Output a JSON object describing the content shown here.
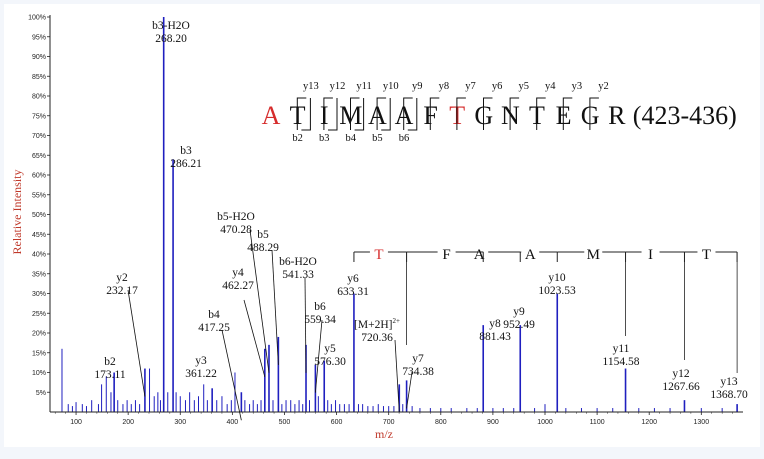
{
  "chart_data": {
    "type": "bar",
    "title": "",
    "xlabel": "m/z",
    "ylabel": "Relative Intensity",
    "xlim": [
      50,
      1380
    ],
    "ylim": [
      0,
      100
    ],
    "colors": {
      "axis_label": "#c0392b",
      "peak": "#1f1fbf",
      "highlight": "#d62c2c",
      "text": "#111111"
    },
    "x_ticks": [
      "100",
      "200",
      "300",
      "400",
      "500",
      "600",
      "700",
      "800",
      "900",
      "1000",
      "1100",
      "1200",
      "1300"
    ],
    "y_ticks": [
      "5%",
      "10%",
      "15%",
      "20%",
      "25%",
      "30%",
      "35%",
      "40%",
      "45%",
      "50%",
      "55%",
      "60%",
      "65%",
      "70%",
      "75%",
      "80%",
      "85%",
      "90%",
      "95%",
      "100%"
    ],
    "labeled_peaks": [
      {
        "label": "b2",
        "mz": "173.11",
        "x": 173.11,
        "y": 10
      },
      {
        "label": "y2",
        "mz": "232.17",
        "x": 232.17,
        "y": 11
      },
      {
        "label": "b3-H2O",
        "mz": "268.20",
        "x": 268.2,
        "y": 100
      },
      {
        "label": "b3",
        "mz": "286.21",
        "x": 286.21,
        "y": 64
      },
      {
        "label": "y3",
        "mz": "361.22",
        "x": 361.22,
        "y": 6
      },
      {
        "label": "b4",
        "mz": "417.25",
        "x": 417.25,
        "y": 5
      },
      {
        "label": "y4",
        "mz": "462.27",
        "x": 462.27,
        "y": 16
      },
      {
        "label": "b5-H2O",
        "mz": "470.28",
        "x": 470.28,
        "y": 17
      },
      {
        "label": "b5",
        "mz": "488.29",
        "x": 488.29,
        "y": 19
      },
      {
        "label": "b6-H2O",
        "mz": "541.33",
        "x": 541.33,
        "y": 17
      },
      {
        "label": "b6",
        "mz": "559.34",
        "x": 559.34,
        "y": 12
      },
      {
        "label": "y5",
        "mz": "576.30",
        "x": 576.3,
        "y": 13
      },
      {
        "label": "y6",
        "mz": "633.31",
        "x": 633.31,
        "y": 30
      },
      {
        "label": "[M+2H]",
        "sup": "2+",
        "mz": "720.36",
        "x": 720.36,
        "y": 7
      },
      {
        "label": "y7",
        "mz": "734.38",
        "x": 734.38,
        "y": 8
      },
      {
        "label": "y8",
        "mz": "881.43",
        "x": 881.43,
        "y": 22
      },
      {
        "label": "y9",
        "mz": "952.49",
        "x": 952.49,
        "y": 22
      },
      {
        "label": "y10",
        "mz": "1023.53",
        "x": 1023.53,
        "y": 30
      },
      {
        "label": "y11",
        "mz": "1154.58",
        "x": 1154.58,
        "y": 11
      },
      {
        "label": "y12",
        "mz": "1267.66",
        "x": 1267.66,
        "y": 3
      },
      {
        "label": "y13",
        "mz": "1368.70",
        "x": 1368.7,
        "y": 2
      }
    ],
    "other_peaks": [
      {
        "x": 73,
        "y": 16
      },
      {
        "x": 85,
        "y": 2
      },
      {
        "x": 93,
        "y": 1.5
      },
      {
        "x": 100,
        "y": 2.5
      },
      {
        "x": 112,
        "y": 2
      },
      {
        "x": 120,
        "y": 1.5
      },
      {
        "x": 130,
        "y": 3
      },
      {
        "x": 143,
        "y": 2
      },
      {
        "x": 149,
        "y": 7
      },
      {
        "x": 158,
        "y": 9
      },
      {
        "x": 167,
        "y": 5
      },
      {
        "x": 180,
        "y": 3
      },
      {
        "x": 190,
        "y": 2
      },
      {
        "x": 198,
        "y": 3
      },
      {
        "x": 206,
        "y": 2
      },
      {
        "x": 214,
        "y": 3
      },
      {
        "x": 222,
        "y": 2
      },
      {
        "x": 241,
        "y": 11
      },
      {
        "x": 250,
        "y": 4
      },
      {
        "x": 257,
        "y": 5
      },
      {
        "x": 262,
        "y": 3
      },
      {
        "x": 276,
        "y": 5
      },
      {
        "x": 292,
        "y": 5
      },
      {
        "x": 300,
        "y": 4
      },
      {
        "x": 310,
        "y": 3
      },
      {
        "x": 318,
        "y": 5
      },
      {
        "x": 327,
        "y": 3
      },
      {
        "x": 335,
        "y": 4
      },
      {
        "x": 345,
        "y": 7
      },
      {
        "x": 352,
        "y": 3
      },
      {
        "x": 370,
        "y": 3
      },
      {
        "x": 380,
        "y": 4
      },
      {
        "x": 390,
        "y": 2
      },
      {
        "x": 398,
        "y": 3
      },
      {
        "x": 405,
        "y": 10
      },
      {
        "x": 424,
        "y": 3
      },
      {
        "x": 433,
        "y": 2
      },
      {
        "x": 440,
        "y": 3
      },
      {
        "x": 448,
        "y": 2
      },
      {
        "x": 455,
        "y": 3
      },
      {
        "x": 478,
        "y": 3
      },
      {
        "x": 495,
        "y": 2
      },
      {
        "x": 503,
        "y": 3
      },
      {
        "x": 512,
        "y": 3
      },
      {
        "x": 520,
        "y": 2
      },
      {
        "x": 528,
        "y": 3
      },
      {
        "x": 535,
        "y": 2
      },
      {
        "x": 548,
        "y": 3
      },
      {
        "x": 565,
        "y": 4
      },
      {
        "x": 583,
        "y": 3
      },
      {
        "x": 590,
        "y": 2
      },
      {
        "x": 598,
        "y": 3
      },
      {
        "x": 606,
        "y": 2
      },
      {
        "x": 615,
        "y": 2
      },
      {
        "x": 624,
        "y": 2
      },
      {
        "x": 642,
        "y": 2
      },
      {
        "x": 650,
        "y": 2
      },
      {
        "x": 660,
        "y": 1.5
      },
      {
        "x": 670,
        "y": 1.5
      },
      {
        "x": 680,
        "y": 2
      },
      {
        "x": 690,
        "y": 1.5
      },
      {
        "x": 700,
        "y": 1.5
      },
      {
        "x": 710,
        "y": 1.5
      },
      {
        "x": 727,
        "y": 2
      },
      {
        "x": 745,
        "y": 1.5
      },
      {
        "x": 760,
        "y": 1
      },
      {
        "x": 780,
        "y": 1
      },
      {
        "x": 800,
        "y": 1
      },
      {
        "x": 820,
        "y": 1
      },
      {
        "x": 850,
        "y": 1
      },
      {
        "x": 870,
        "y": 1
      },
      {
        "x": 900,
        "y": 1
      },
      {
        "x": 920,
        "y": 1
      },
      {
        "x": 940,
        "y": 1
      },
      {
        "x": 980,
        "y": 1
      },
      {
        "x": 1000,
        "y": 2
      },
      {
        "x": 1040,
        "y": 1
      },
      {
        "x": 1070,
        "y": 1
      },
      {
        "x": 1100,
        "y": 1
      },
      {
        "x": 1130,
        "y": 1
      },
      {
        "x": 1180,
        "y": 1
      },
      {
        "x": 1210,
        "y": 1
      },
      {
        "x": 1240,
        "y": 1
      },
      {
        "x": 1300,
        "y": 1
      },
      {
        "x": 1340,
        "y": 1
      }
    ],
    "sequence": {
      "residues": [
        "A",
        "T",
        "I",
        "M",
        "A",
        "A",
        "F",
        "T",
        "G",
        "N",
        "T",
        "E",
        "G",
        "R"
      ],
      "highlighted": [
        0,
        7
      ],
      "range": "(423-436)",
      "y_ions": [
        "y13",
        "y12",
        "y11",
        "y10",
        "y9",
        "y8",
        "y7",
        "y6",
        "y5",
        "y4",
        "y3",
        "y2"
      ],
      "b_ions": [
        "b2",
        "b3",
        "b4",
        "b5",
        "b6"
      ]
    },
    "ladder": {
      "residues": [
        "T",
        "F",
        "A",
        "A",
        "M",
        "I",
        "T"
      ]
    }
  }
}
